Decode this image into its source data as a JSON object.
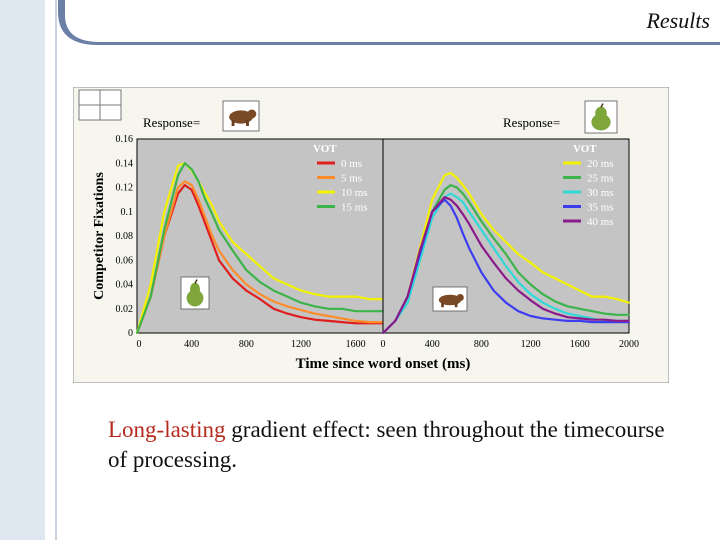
{
  "slide": {
    "title": "Results",
    "caption_highlight": "Long-lasting",
    "caption_rest": " gradient effect: seen throughout the timecourse of processing."
  },
  "colors": {
    "background": "#ffffff",
    "chart_background": "#f6f5ee",
    "plot_background": "#c4c4c4",
    "highlight_text": "#b52a1e",
    "side_stripe": "#dfe7f1"
  },
  "chart_data": [
    {
      "type": "line",
      "panel_header": "Response=",
      "response_icon": "bear-icon",
      "inset_icon": "pear-icon",
      "legend_title": "VOT",
      "legend_placement": "top-right",
      "ylabel": "Competitor Fixations",
      "xlabel": "Time since word onset (ms)",
      "xlim": [
        0,
        1800
      ],
      "ylim": [
        0,
        0.16
      ],
      "x_ticks": [
        "0",
        "400",
        "800",
        "1200",
        "1600"
      ],
      "y_ticks": [
        "0",
        "0.02",
        "0.04",
        "0.06",
        "0.08",
        "0.1",
        "0.12",
        "0.14",
        "0.16"
      ],
      "x": [
        0,
        100,
        200,
        300,
        350,
        400,
        450,
        500,
        550,
        600,
        700,
        800,
        900,
        1000,
        1100,
        1200,
        1300,
        1400,
        1500,
        1600,
        1700,
        1800
      ],
      "series": [
        {
          "name": "0 ms",
          "color": "#e01e1e",
          "values": [
            0.0,
            0.03,
            0.08,
            0.115,
            0.122,
            0.118,
            0.105,
            0.09,
            0.075,
            0.06,
            0.045,
            0.035,
            0.028,
            0.02,
            0.016,
            0.013,
            0.011,
            0.01,
            0.009,
            0.008,
            0.008,
            0.008
          ]
        },
        {
          "name": "5 ms",
          "color": "#ff8c2a",
          "values": [
            0.0,
            0.03,
            0.08,
            0.12,
            0.125,
            0.122,
            0.11,
            0.095,
            0.08,
            0.068,
            0.052,
            0.04,
            0.032,
            0.026,
            0.022,
            0.019,
            0.016,
            0.014,
            0.012,
            0.01,
            0.009,
            0.009
          ]
        },
        {
          "name": "10 ms",
          "color": "#f2f200",
          "values": [
            0.0,
            0.04,
            0.1,
            0.138,
            0.14,
            0.134,
            0.125,
            0.115,
            0.105,
            0.092,
            0.075,
            0.065,
            0.055,
            0.045,
            0.04,
            0.035,
            0.032,
            0.03,
            0.03,
            0.03,
            0.028,
            0.028
          ]
        },
        {
          "name": "15 ms",
          "color": "#3cb44b",
          "values": [
            0.0,
            0.03,
            0.085,
            0.13,
            0.14,
            0.135,
            0.125,
            0.11,
            0.098,
            0.085,
            0.068,
            0.052,
            0.042,
            0.035,
            0.03,
            0.025,
            0.022,
            0.02,
            0.02,
            0.018,
            0.018,
            0.018
          ]
        }
      ]
    },
    {
      "type": "line",
      "panel_header": "Response=",
      "response_icon": "pear-icon",
      "inset_icon": "bear-icon",
      "legend_title": "VOT",
      "legend_placement": "top-right",
      "xlabel": "Time since word onset (ms)",
      "xlim": [
        0,
        2000
      ],
      "ylim": [
        0,
        0.16
      ],
      "x_ticks": [
        "0",
        "400",
        "800",
        "1200",
        "1600",
        "2000"
      ],
      "x": [
        0,
        100,
        200,
        300,
        400,
        500,
        550,
        600,
        650,
        700,
        800,
        900,
        1000,
        1100,
        1200,
        1300,
        1400,
        1500,
        1600,
        1700,
        1800,
        1900,
        2000
      ],
      "series": [
        {
          "name": "20 ms",
          "color": "#f2f200",
          "values": [
            0.0,
            0.01,
            0.03,
            0.07,
            0.11,
            0.13,
            0.132,
            0.128,
            0.122,
            0.115,
            0.098,
            0.085,
            0.075,
            0.065,
            0.058,
            0.05,
            0.045,
            0.04,
            0.035,
            0.03,
            0.03,
            0.028,
            0.025
          ]
        },
        {
          "name": "25 ms",
          "color": "#3cb44b",
          "values": [
            0.0,
            0.01,
            0.03,
            0.065,
            0.1,
            0.118,
            0.122,
            0.12,
            0.115,
            0.108,
            0.092,
            0.078,
            0.065,
            0.05,
            0.04,
            0.032,
            0.026,
            0.022,
            0.02,
            0.018,
            0.016,
            0.015,
            0.015
          ]
        },
        {
          "name": "30 ms",
          "color": "#30d8d8",
          "values": [
            0.0,
            0.01,
            0.025,
            0.06,
            0.095,
            0.112,
            0.115,
            0.112,
            0.108,
            0.1,
            0.085,
            0.07,
            0.055,
            0.042,
            0.032,
            0.025,
            0.02,
            0.016,
            0.014,
            0.012,
            0.01,
            0.01,
            0.01
          ]
        },
        {
          "name": "35 ms",
          "color": "#3d3df0",
          "values": [
            0.0,
            0.01,
            0.03,
            0.065,
            0.1,
            0.11,
            0.105,
            0.095,
            0.082,
            0.07,
            0.05,
            0.035,
            0.025,
            0.018,
            0.014,
            0.012,
            0.011,
            0.01,
            0.01,
            0.009,
            0.009,
            0.009,
            0.009
          ]
        },
        {
          "name": "40 ms",
          "color": "#8b1a8b",
          "values": [
            0.0,
            0.01,
            0.03,
            0.068,
            0.1,
            0.112,
            0.11,
            0.105,
            0.098,
            0.09,
            0.072,
            0.058,
            0.045,
            0.035,
            0.027,
            0.02,
            0.016,
            0.013,
            0.012,
            0.011,
            0.011,
            0.01,
            0.01
          ]
        }
      ]
    }
  ]
}
